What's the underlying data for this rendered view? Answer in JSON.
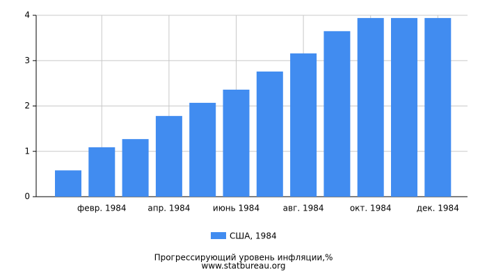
{
  "chart_data": {
    "type": "bar",
    "categories": [
      null,
      "февр. 1984",
      null,
      "апр. 1984",
      null,
      "июнь 1984",
      null,
      "авг. 1984",
      null,
      "окт. 1984",
      null,
      "дек. 1984"
    ],
    "series": [
      {
        "name": "США, 1984",
        "color": "#418cf0",
        "values": [
          0.58,
          1.09,
          1.27,
          1.78,
          2.07,
          2.36,
          2.76,
          3.16,
          3.65,
          3.94,
          3.94,
          3.94
        ]
      }
    ],
    "ylim": [
      0,
      4
    ],
    "yticks": [
      0,
      1,
      2,
      3,
      4
    ],
    "grid": true,
    "title": "Прогрессирующий уровень инфляции,%",
    "source": "www.statbureau.org"
  }
}
